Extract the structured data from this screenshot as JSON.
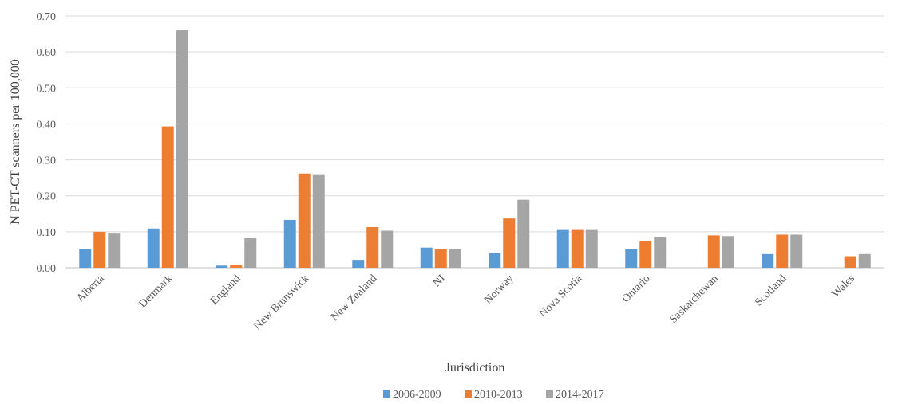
{
  "chart_data": {
    "type": "bar",
    "title": "",
    "xlabel": "Jurisdiction",
    "ylabel": "N PET-CT scanners per 100,000",
    "ylim": [
      0,
      0.7
    ],
    "yticks": [
      "0.00",
      "0.10",
      "0.20",
      "0.30",
      "0.40",
      "0.50",
      "0.60",
      "0.70"
    ],
    "grid": true,
    "legend_position": "bottom",
    "categories": [
      "Alberta",
      "Denmark",
      "England",
      "New Brunswick",
      "New Zealand",
      "NI",
      "Norway",
      "Nova Scotia",
      "Ontario",
      "Saskatchewan",
      "Scotland",
      "Wales"
    ],
    "series": [
      {
        "name": "2006-2009",
        "color": "#5B9BD5",
        "values": [
          0.053,
          0.109,
          0.006,
          0.133,
          0.022,
          0.056,
          0.04,
          0.105,
          0.053,
          null,
          0.038,
          null
        ]
      },
      {
        "name": "2010-2013",
        "color": "#ED7D31",
        "values": [
          0.1,
          0.393,
          0.008,
          0.262,
          0.113,
          0.053,
          0.137,
          0.105,
          0.074,
          0.09,
          0.092,
          0.032
        ]
      },
      {
        "name": "2014-2017",
        "color": "#A5A5A5",
        "values": [
          0.095,
          0.66,
          0.082,
          0.26,
          0.103,
          0.053,
          0.189,
          0.105,
          0.085,
          0.088,
          0.092,
          0.038
        ]
      }
    ]
  }
}
